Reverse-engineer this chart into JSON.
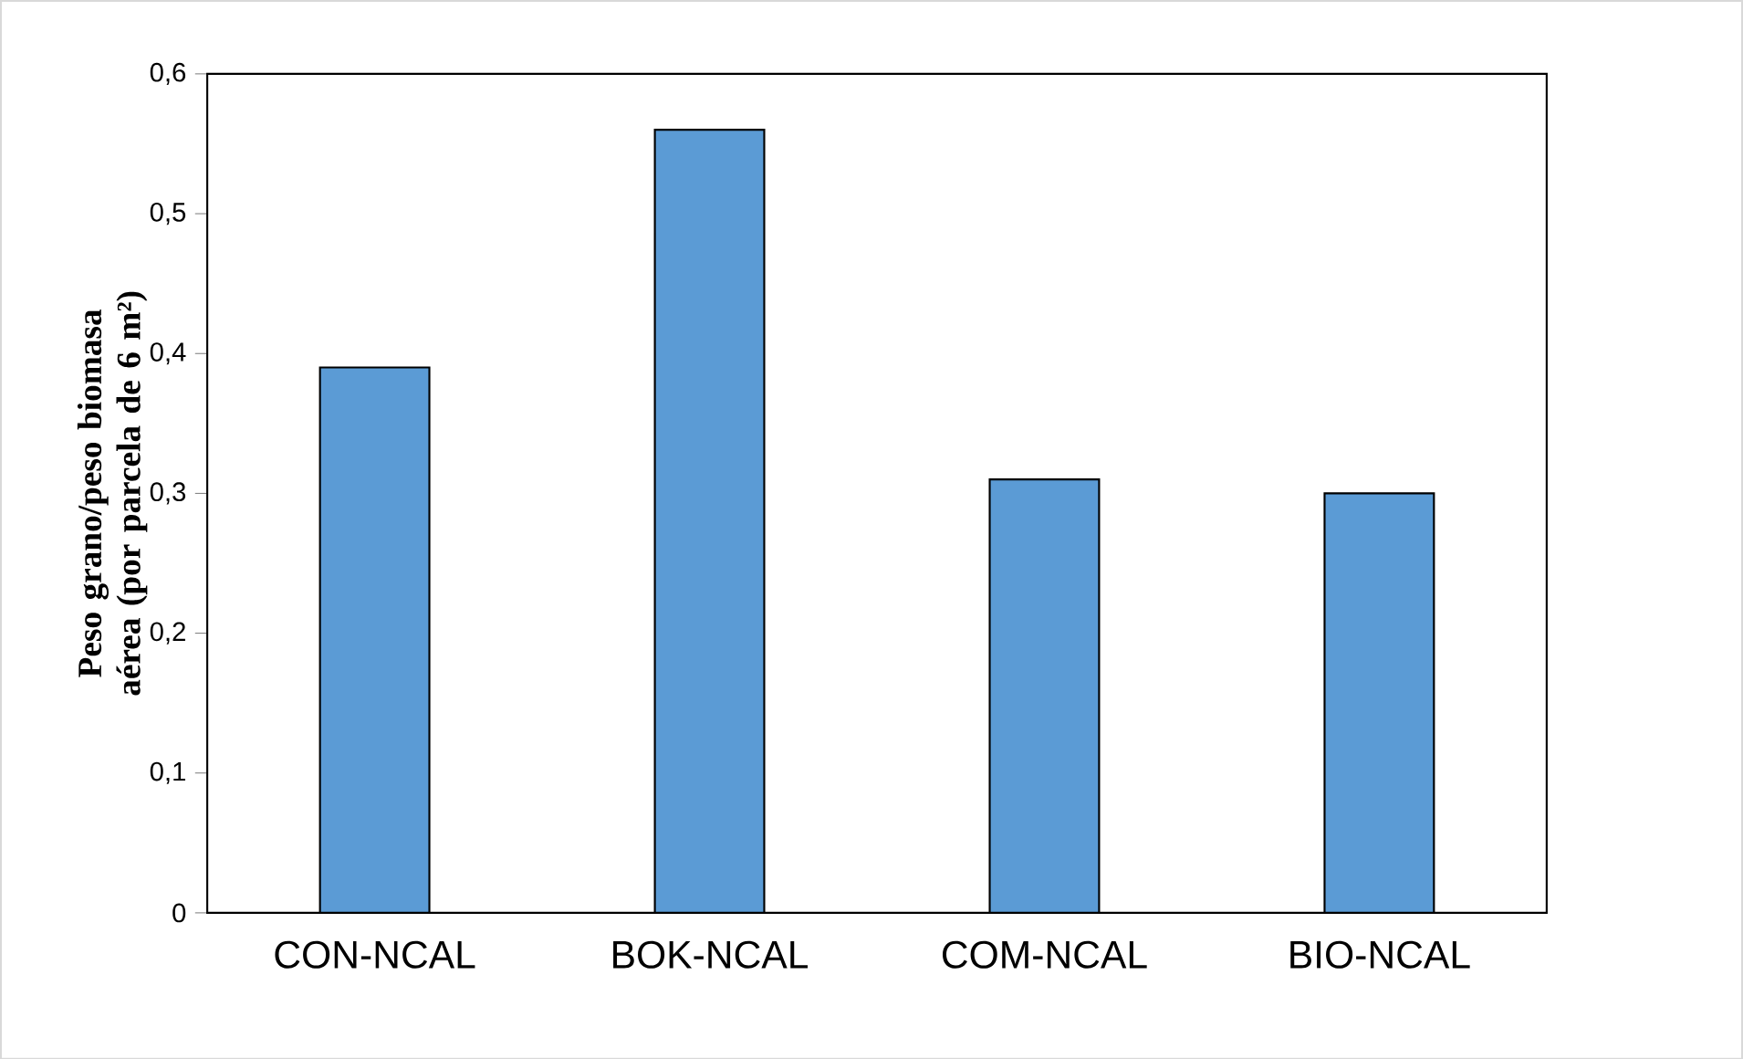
{
  "chart_data": {
    "type": "bar",
    "ylabel": "Peso grano/peso biomasa aérea (por parcela de 6 m²)",
    "categories": [
      "CON-NCAL",
      "BOK-NCAL",
      "COM-NCAL",
      "BIO-NCAL"
    ],
    "values": [
      0.39,
      0.56,
      0.31,
      0.3
    ],
    "color": "#5b9bd5",
    "ylim": [
      0,
      0.6
    ],
    "yticks": [
      0,
      {
        "value": 0.1,
        "label": "0,1"
      },
      {
        "value": 0.2,
        "label": "0,2"
      },
      {
        "value": 0.3,
        "label": "0,3"
      },
      {
        "value": 0.4,
        "label": "0,4"
      },
      {
        "value": 0.5,
        "label": "0,5"
      },
      {
        "value": 0.6,
        "label": "0,6"
      }
    ],
    "grid": false
  }
}
